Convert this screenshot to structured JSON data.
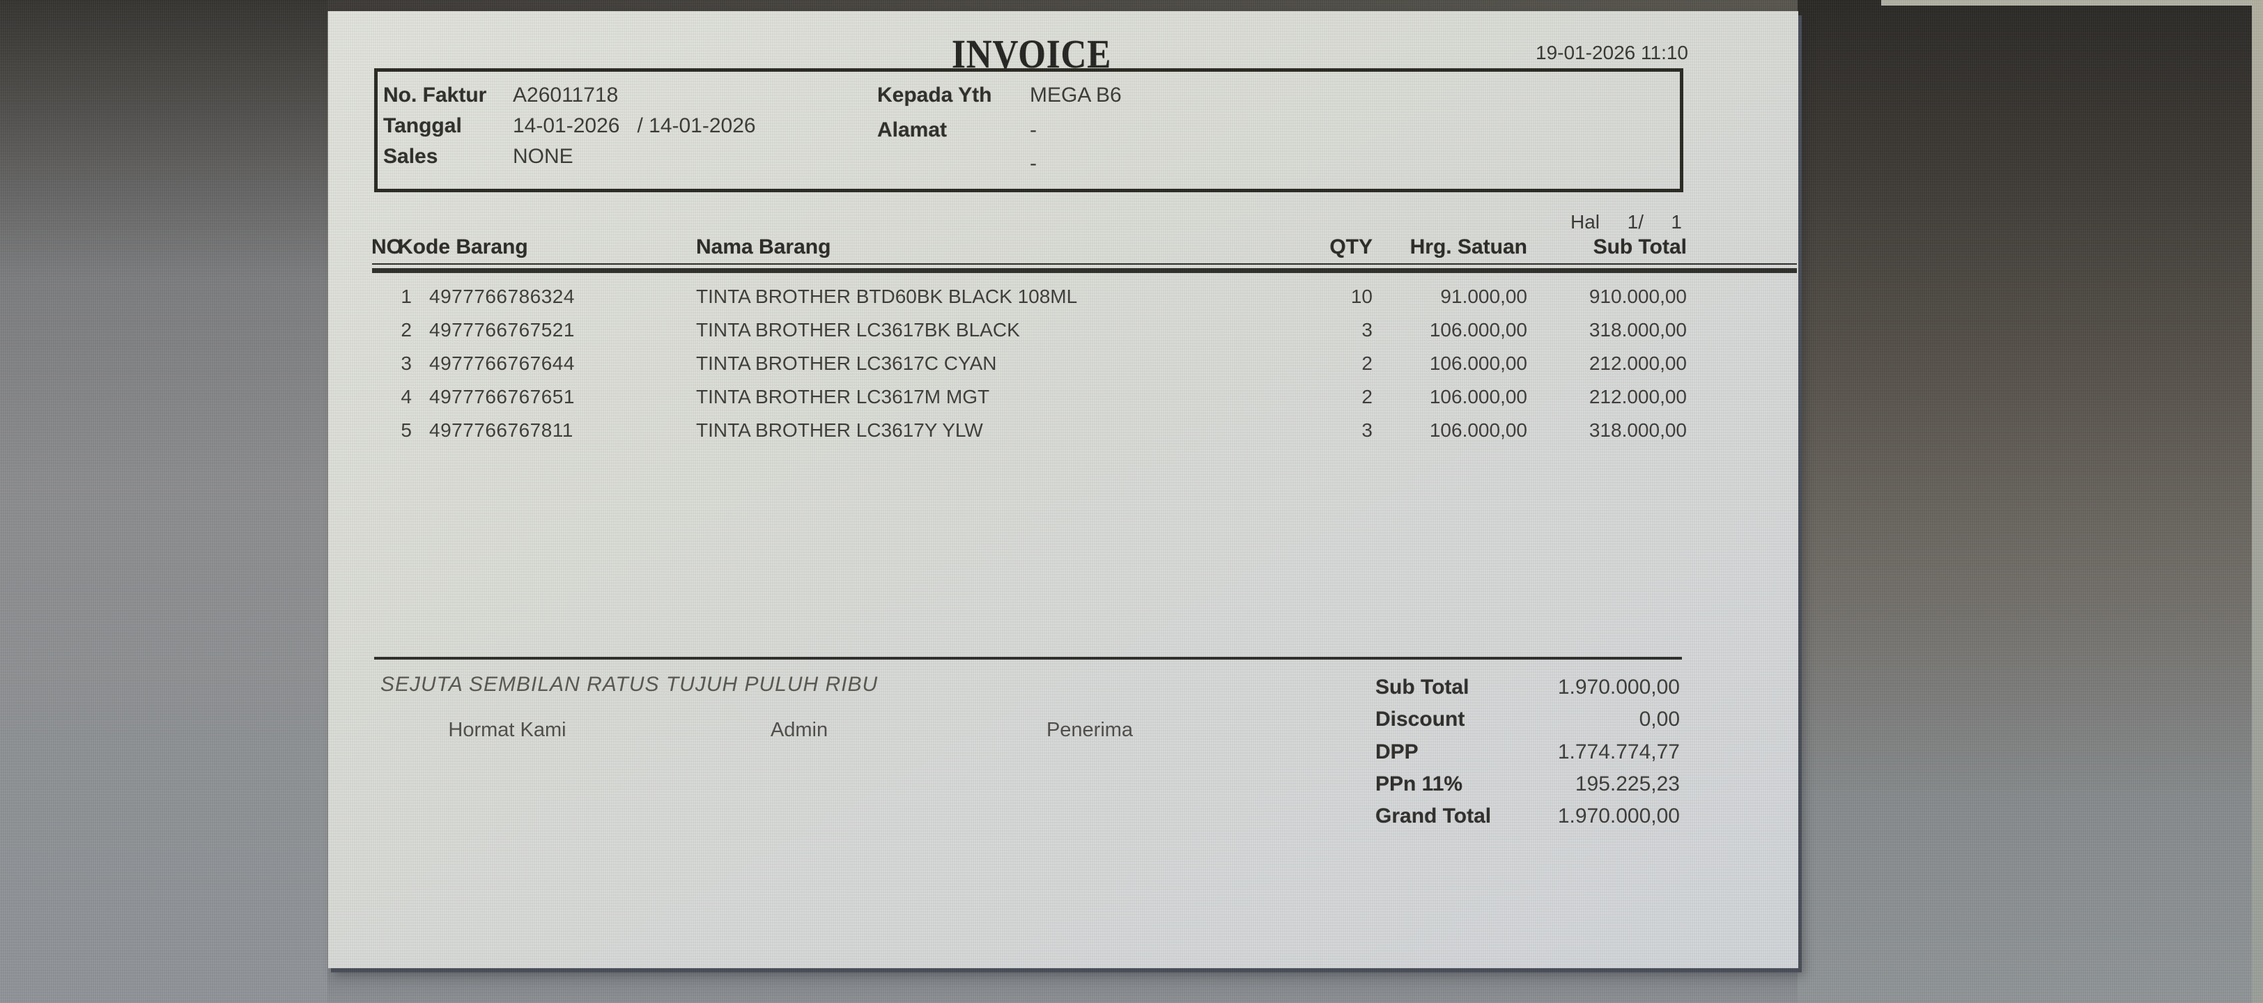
{
  "invoice": {
    "title": "INVOICE",
    "printed_at": "19-01-2026 11:10",
    "header": {
      "no_faktur_label": "No. Faktur",
      "no_faktur": "A26011718",
      "tanggal_label": "Tanggal",
      "tanggal": "14-01-2026   / 14-01-2026",
      "sales_label": "Sales",
      "sales": "NONE",
      "kepada_label": "Kepada Yth",
      "kepada": "MEGA B6",
      "alamat_label": "Alamat",
      "alamat": "-",
      "alamat_line2": "-"
    },
    "page_indicator": {
      "label": "Hal",
      "current": "1/",
      "total": "1"
    },
    "table": {
      "headers": {
        "no": "NO",
        "kode": "Kode Barang",
        "nama": "Nama Barang",
        "qty": "QTY",
        "hrg": "Hrg. Satuan",
        "subtotal": "Sub Total"
      },
      "rows": [
        {
          "no": "1",
          "kode": "4977766786324",
          "nama": "TINTA BROTHER BTD60BK BLACK 108ML",
          "qty": "10",
          "hrg": "91.000,00",
          "subtotal": "910.000,00"
        },
        {
          "no": "2",
          "kode": "4977766767521",
          "nama": "TINTA BROTHER LC3617BK BLACK",
          "qty": "3",
          "hrg": "106.000,00",
          "subtotal": "318.000,00"
        },
        {
          "no": "3",
          "kode": "4977766767644",
          "nama": "TINTA BROTHER LC3617C CYAN",
          "qty": "2",
          "hrg": "106.000,00",
          "subtotal": "212.000,00"
        },
        {
          "no": "4",
          "kode": "4977766767651",
          "nama": "TINTA BROTHER LC3617M MGT",
          "qty": "2",
          "hrg": "106.000,00",
          "subtotal": "212.000,00"
        },
        {
          "no": "5",
          "kode": "4977766767811",
          "nama": "TINTA BROTHER LC3617Y YLW",
          "qty": "3",
          "hrg": "106.000,00",
          "subtotal": "318.000,00"
        }
      ]
    },
    "amount_in_words": "SEJUTA SEMBILAN RATUS TUJUH PULUH RIBU",
    "signatures": [
      "Hormat Kami",
      "Admin",
      "Penerima"
    ],
    "totals": [
      {
        "label": "Sub Total",
        "value": "1.970.000,00"
      },
      {
        "label": "Discount",
        "value": "0,00"
      },
      {
        "label": "DPP",
        "value": "1.774.774,77"
      },
      {
        "label": "PPn 11%",
        "value": "195.225,23"
      },
      {
        "label": "Grand Total",
        "value": "1.970.000,00"
      }
    ],
    "colors": {
      "page_background": "#dcded7",
      "ink": "#2b2a27",
      "backdrop_gray": "#8c9093",
      "backdrop_dark": "#2f2d2a",
      "page_shadow": "#454a55"
    }
  }
}
